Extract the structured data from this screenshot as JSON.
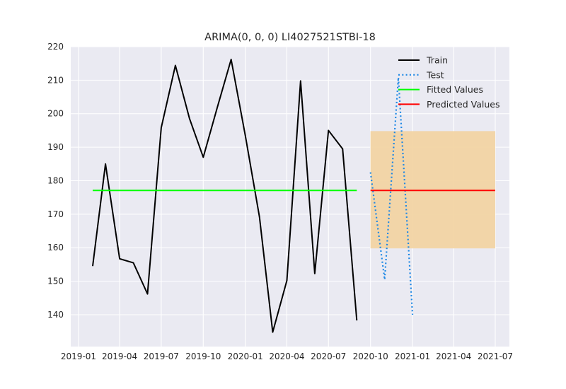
{
  "chart_data": {
    "type": "line",
    "title": "ARIMA(0, 0, 0) LI4027521STBI-18",
    "xlabel": "",
    "ylabel": "",
    "x_tick_labels": [
      "2019-01",
      "2019-04",
      "2019-07",
      "2019-10",
      "2020-01",
      "2020-04",
      "2020-07",
      "2020-10",
      "2021-01",
      "2021-04",
      "2021-07"
    ],
    "y_tick_labels": [
      "140",
      "150",
      "160",
      "170",
      "180",
      "190",
      "200",
      "210",
      "220"
    ],
    "ylim": [
      130.5,
      220
    ],
    "xlim": [
      "2018-12-15",
      "2021-08-01"
    ],
    "grid": true,
    "legend_position": "upper right",
    "confidence_interval": {
      "start": "2020-10-01",
      "end": "2021-07-01",
      "lower": 159.8,
      "upper": 194.8,
      "color": "#f2d4a3"
    },
    "series": [
      {
        "name": "Train",
        "color": "#000000",
        "style": "solid",
        "points": [
          [
            "2019-02-01",
            154.5
          ],
          [
            "2019-03-01",
            185.0
          ],
          [
            "2019-04-01",
            156.7
          ],
          [
            "2019-05-01",
            155.5
          ],
          [
            "2019-06-01",
            146.2
          ],
          [
            "2019-07-01",
            195.8
          ],
          [
            "2019-08-01",
            214.4
          ],
          [
            "2019-09-01",
            198.5
          ],
          [
            "2019-10-01",
            187.0
          ],
          [
            "2019-11-01",
            202.0
          ],
          [
            "2019-12-01",
            216.2
          ],
          [
            "2020-01-01",
            193.5
          ],
          [
            "2020-02-01",
            169.2
          ],
          [
            "2020-03-01",
            134.8
          ],
          [
            "2020-04-01",
            150.2
          ],
          [
            "2020-05-01",
            209.8
          ],
          [
            "2020-06-01",
            152.3
          ],
          [
            "2020-07-01",
            195.0
          ],
          [
            "2020-08-01",
            189.5
          ],
          [
            "2020-09-01",
            138.3
          ]
        ]
      },
      {
        "name": "Test",
        "color": "#1e88e5",
        "style": "dotted",
        "points": [
          [
            "2020-10-01",
            182.5
          ],
          [
            "2020-11-01",
            150.5
          ],
          [
            "2020-12-01",
            210.8
          ],
          [
            "2021-01-01",
            140.0
          ]
        ]
      },
      {
        "name": "Fitted Values",
        "color": "#00ff00",
        "style": "solid",
        "points": [
          [
            "2019-02-01",
            177.1
          ],
          [
            "2020-09-01",
            177.1
          ]
        ]
      },
      {
        "name": "Predicted Values",
        "color": "#ff0000",
        "style": "solid",
        "points": [
          [
            "2020-10-01",
            177.1
          ],
          [
            "2021-07-01",
            177.1
          ]
        ]
      }
    ]
  }
}
